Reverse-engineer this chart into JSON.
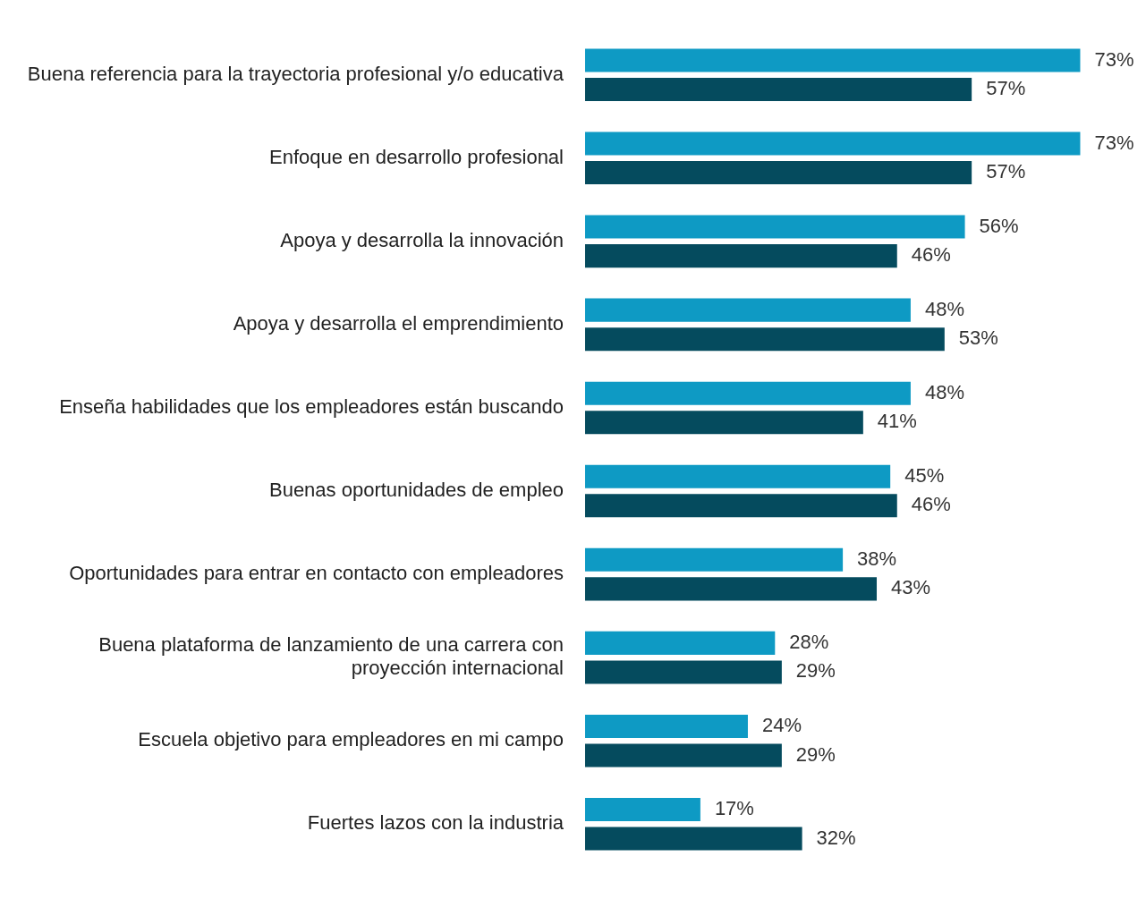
{
  "chart_data": {
    "type": "bar",
    "orientation": "horizontal",
    "grid": false,
    "legend": false,
    "tick_labels": "y",
    "categories": [
      "Buena referencia para la trayectoria profesional y/o educativa",
      "Enfoque en desarrollo profesional",
      "Apoya y desarrolla la innovación",
      "Apoya y desarrolla el emprendimiento",
      "Enseña habilidades que los empleadores están buscando",
      "Buenas oportunidades de empleo",
      "Oportunidades para entrar en contacto con empleadores",
      "Buena plataforma de lanzamiento de una carrera con proyección internacional",
      "Escuela objetivo para empleadores en mi campo",
      "Fuertes lazos con la industria"
    ],
    "series": [
      {
        "color": "#0e9ac4",
        "values": [
          73,
          73,
          56,
          48,
          48,
          45,
          38,
          28,
          24,
          17
        ],
        "value_labels": [
          "73%",
          "73%",
          "56%",
          "48%",
          "48%",
          "45%",
          "38%",
          "28%",
          "24%",
          "17%"
        ]
      },
      {
        "color": "#054b5e",
        "values": [
          57,
          57,
          46,
          53,
          41,
          46,
          43,
          29,
          29,
          32
        ],
        "value_labels": [
          "57%",
          "57%",
          "46%",
          "53%",
          "41%",
          "46%",
          "43%",
          "29%",
          "29%",
          "32%"
        ]
      }
    ]
  }
}
